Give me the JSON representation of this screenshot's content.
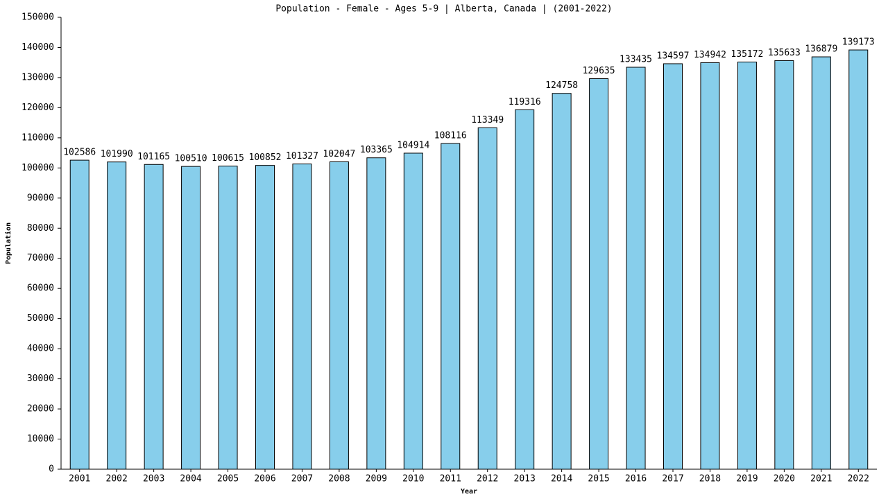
{
  "chart_data": {
    "type": "bar",
    "title": "Population - Female - Ages 5-9 | Alberta, Canada |  (2001-2022)",
    "x_label": "Year",
    "y_label": "Population",
    "categories": [
      "2001",
      "2002",
      "2003",
      "2004",
      "2005",
      "2006",
      "2007",
      "2008",
      "2009",
      "2010",
      "2011",
      "2012",
      "2013",
      "2014",
      "2015",
      "2016",
      "2017",
      "2018",
      "2019",
      "2020",
      "2021",
      "2022"
    ],
    "values": [
      102586,
      101990,
      101165,
      100510,
      100615,
      100852,
      101327,
      102047,
      103365,
      104914,
      108116,
      113349,
      119316,
      124758,
      129635,
      133435,
      134597,
      134942,
      135172,
      135633,
      136879,
      139173
    ],
    "color": "#87ceeb",
    "ylim": [
      0,
      150000
    ],
    "yticks": [
      0,
      10000,
      20000,
      30000,
      40000,
      50000,
      60000,
      70000,
      80000,
      90000,
      100000,
      110000,
      120000,
      130000,
      140000,
      150000
    ],
    "grid": false
  }
}
